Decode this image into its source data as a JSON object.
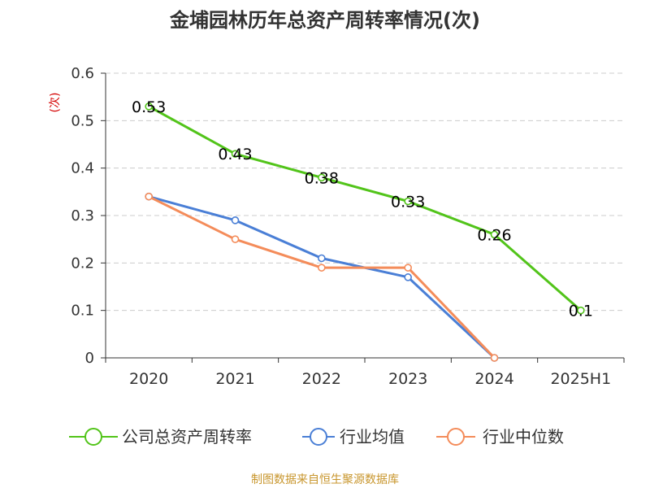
{
  "colors": {
    "company": "#52c41a",
    "industry_avg": "#4a7fd6",
    "industry_median": "#f48c5a",
    "grid": "#cccccc",
    "axis": "#333333"
  },
  "chart_data": {
    "type": "line",
    "title": "金埔园林历年总资产周转率情况(次)",
    "ylabel": "(次)",
    "xlabel": "",
    "categories": [
      "2020",
      "2021",
      "2022",
      "2023",
      "2024",
      "2025H1"
    ],
    "y_ticks": [
      "0",
      "0.1",
      "0.2",
      "0.3",
      "0.4",
      "0.5",
      "0.6"
    ],
    "ylim": [
      0,
      0.6
    ],
    "grid": true,
    "legend_position": "bottom",
    "series": [
      {
        "name": "公司总资产周转率",
        "values": [
          0.53,
          0.43,
          0.38,
          0.33,
          0.26,
          0.1
        ],
        "labels": [
          "0.53",
          "0.43",
          "0.38",
          "0.33",
          "0.26",
          "0.1"
        ]
      },
      {
        "name": "行业均值",
        "values": [
          0.34,
          0.29,
          0.21,
          0.17,
          0,
          null
        ]
      },
      {
        "name": "行业中位数",
        "values": [
          0.34,
          0.25,
          0.19,
          0.19,
          0,
          null
        ]
      }
    ]
  },
  "source": "制图数据来自恒生聚源数据库"
}
